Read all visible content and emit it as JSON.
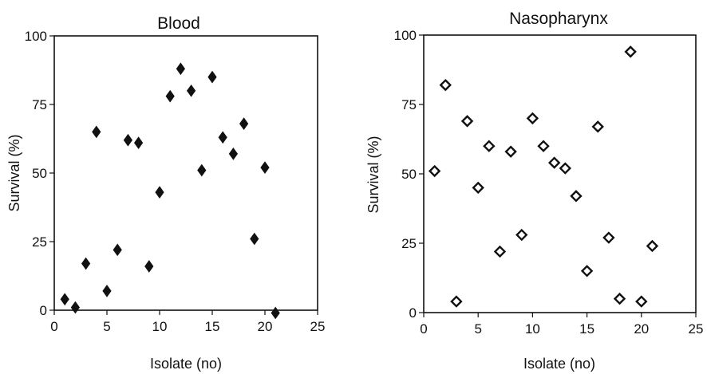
{
  "chart_data": [
    {
      "type": "scatter",
      "title": "Blood",
      "xlabel": "Isolate (no)",
      "ylabel": "Survival (%)",
      "xlim": [
        0,
        25
      ],
      "ylim": [
        0,
        100
      ],
      "xticks": [
        0,
        5,
        10,
        15,
        20,
        25
      ],
      "yticks": [
        0,
        25,
        50,
        75,
        100
      ],
      "grid": false,
      "marker": "filled-diamond",
      "series": [
        {
          "points": [
            {
              "x": 1,
              "y": 4
            },
            {
              "x": 2,
              "y": 1
            },
            {
              "x": 3,
              "y": 17
            },
            {
              "x": 4,
              "y": 65
            },
            {
              "x": 5,
              "y": 7
            },
            {
              "x": 6,
              "y": 22
            },
            {
              "x": 7,
              "y": 62
            },
            {
              "x": 8,
              "y": 61
            },
            {
              "x": 9,
              "y": 16
            },
            {
              "x": 10,
              "y": 43
            },
            {
              "x": 11,
              "y": 78
            },
            {
              "x": 12,
              "y": 88
            },
            {
              "x": 13,
              "y": 80
            },
            {
              "x": 14,
              "y": 51
            },
            {
              "x": 15,
              "y": 85
            },
            {
              "x": 16,
              "y": 63
            },
            {
              "x": 17,
              "y": 57
            },
            {
              "x": 18,
              "y": 68
            },
            {
              "x": 19,
              "y": 26
            },
            {
              "x": 20,
              "y": 52
            },
            {
              "x": 21,
              "y": -1
            }
          ]
        }
      ]
    },
    {
      "type": "scatter",
      "title": "Nasopharynx",
      "xlabel": "Isolate (no)",
      "ylabel": "Survival (%)",
      "xlim": [
        0,
        25
      ],
      "ylim": [
        0,
        100
      ],
      "xticks": [
        0,
        5,
        10,
        15,
        20,
        25
      ],
      "yticks": [
        0,
        25,
        50,
        75,
        100
      ],
      "grid": false,
      "marker": "open-diamond",
      "series": [
        {
          "points": [
            {
              "x": 1,
              "y": 51
            },
            {
              "x": 2,
              "y": 82
            },
            {
              "x": 3,
              "y": 4
            },
            {
              "x": 4,
              "y": 69
            },
            {
              "x": 5,
              "y": 45
            },
            {
              "x": 6,
              "y": 60
            },
            {
              "x": 7,
              "y": 22
            },
            {
              "x": 8,
              "y": 58
            },
            {
              "x": 9,
              "y": 28
            },
            {
              "x": 10,
              "y": 70
            },
            {
              "x": 11,
              "y": 60
            },
            {
              "x": 12,
              "y": 54
            },
            {
              "x": 13,
              "y": 52
            },
            {
              "x": 14,
              "y": 42
            },
            {
              "x": 15,
              "y": 15
            },
            {
              "x": 16,
              "y": 67
            },
            {
              "x": 17,
              "y": 27
            },
            {
              "x": 18,
              "y": 5
            },
            {
              "x": 19,
              "y": 94
            },
            {
              "x": 20,
              "y": 4
            },
            {
              "x": 21,
              "y": 24
            }
          ]
        }
      ]
    }
  ]
}
